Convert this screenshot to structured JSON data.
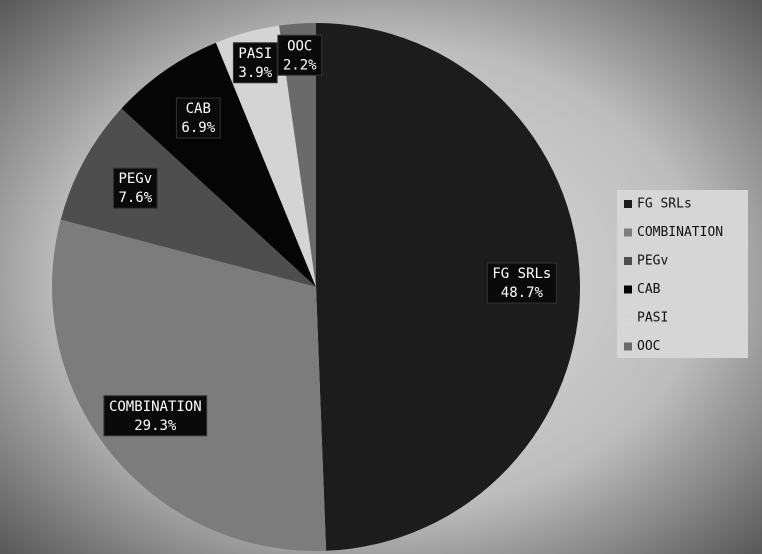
{
  "chart_data": {
    "type": "pie",
    "categories": [
      "FG SRLs",
      "COMBINATION",
      "PEGv",
      "CAB",
      "PASI",
      "OOC"
    ],
    "values": [
      48.7,
      29.3,
      7.6,
      6.9,
      3.9,
      2.2
    ],
    "value_labels": [
      "48.7%",
      "29.3%",
      "7.6%",
      "6.9%",
      "3.9%",
      "2.2%"
    ],
    "colors": [
      "#1c1c1c",
      "#7c7c7c",
      "#4e4e4e",
      "#050505",
      "#d4d4d4",
      "#6a6a6a"
    ],
    "legend": "right"
  }
}
